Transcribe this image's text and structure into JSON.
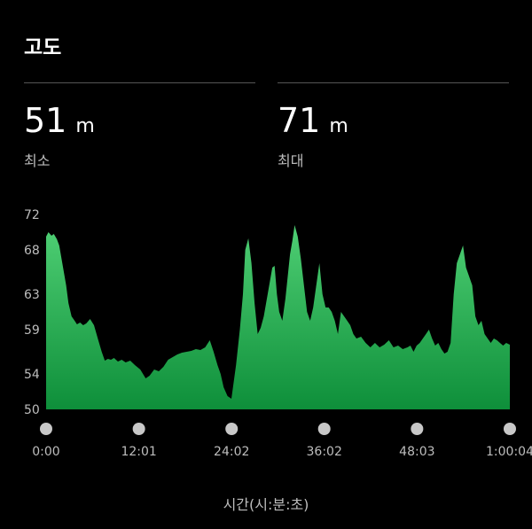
{
  "header": {
    "title": "고도"
  },
  "stats": {
    "min": {
      "value": "51",
      "unit": "m",
      "label": "최소"
    },
    "max": {
      "value": "71",
      "unit": "m",
      "label": "최대"
    }
  },
  "colors": {
    "background": "#000000",
    "area_top": "#4fcf74",
    "area_bottom": "#0e8f3a",
    "tick_text": "#bdbdbd",
    "marker": "#c8c8c8"
  },
  "chart_data": {
    "type": "area",
    "xlabel": "시간(시:분:초)",
    "ylabel": "",
    "y_ticks": [
      "72",
      "68",
      "63",
      "59",
      "54",
      "50"
    ],
    "y_tick_values": [
      72,
      68,
      63,
      59,
      54,
      50
    ],
    "x_ticks": [
      "0:00",
      "12:01",
      "24:02",
      "36:02",
      "48:03",
      "1:00:04"
    ],
    "x_tick_values": [
      0,
      12.02,
      24.03,
      36.03,
      48.05,
      60.07
    ],
    "ylim": [
      50,
      72
    ],
    "xlim": [
      0,
      60.07
    ],
    "x_unit": "minutes",
    "x": [
      0,
      0.3,
      0.7,
      1.0,
      1.4,
      1.7,
      2.0,
      2.3,
      2.6,
      2.9,
      3.3,
      3.7,
      4.0,
      4.4,
      4.8,
      5.2,
      5.7,
      6.2,
      6.7,
      7.2,
      7.6,
      8.0,
      8.4,
      8.8,
      9.3,
      9.8,
      10.3,
      10.9,
      11.5,
      12.2,
      12.9,
      13.4,
      14.0,
      14.6,
      15.2,
      15.8,
      16.4,
      17.0,
      17.6,
      18.2,
      18.8,
      19.4,
      20.0,
      20.6,
      21.2,
      21.7,
      22.2,
      22.6,
      23.0,
      23.5,
      24.0,
      24.6,
      25.1,
      25.5,
      25.8,
      26.2,
      26.6,
      27.0,
      27.4,
      27.8,
      28.2,
      28.6,
      29.0,
      29.3,
      29.6,
      29.9,
      30.2,
      30.6,
      31.0,
      31.3,
      31.6,
      31.9,
      32.2,
      32.6,
      33.0,
      33.4,
      33.8,
      34.2,
      34.6,
      35.0,
      35.4,
      35.8,
      36.2,
      36.6,
      37.0,
      37.4,
      37.8,
      38.2,
      38.6,
      39.0,
      39.4,
      39.8,
      40.2,
      40.8,
      41.4,
      42.0,
      42.6,
      43.2,
      43.8,
      44.4,
      45.0,
      45.6,
      46.2,
      46.8,
      47.2,
      47.6,
      48.0,
      48.4,
      48.8,
      49.2,
      49.6,
      50.0,
      50.4,
      50.8,
      51.2,
      51.6,
      52.0,
      52.4,
      52.8,
      53.2,
      53.6,
      54.0,
      54.4,
      54.8,
      55.2,
      55.6,
      56.0,
      56.4,
      56.8,
      57.2,
      57.6,
      58.0,
      58.4,
      58.8,
      59.2,
      59.6,
      60.07
    ],
    "y": [
      69.5,
      70.0,
      69.6,
      69.8,
      69.2,
      68.5,
      67.0,
      65.5,
      64.0,
      62.0,
      60.5,
      60.0,
      59.6,
      59.8,
      59.5,
      59.7,
      60.2,
      59.5,
      58.0,
      56.5,
      55.5,
      55.7,
      55.6,
      55.8,
      55.4,
      55.6,
      55.3,
      55.5,
      55.0,
      54.5,
      53.5,
      53.8,
      54.5,
      54.3,
      54.8,
      55.6,
      55.9,
      56.2,
      56.4,
      56.5,
      56.6,
      56.8,
      56.7,
      57.0,
      57.8,
      56.5,
      55.0,
      54.0,
      52.5,
      51.5,
      51.2,
      55.0,
      59.0,
      63.0,
      68.0,
      69.3,
      66.5,
      62.0,
      58.5,
      59.2,
      60.5,
      62.5,
      64.5,
      66.0,
      66.2,
      63.0,
      61.0,
      60.0,
      62.5,
      65.0,
      67.5,
      69.0,
      70.8,
      69.5,
      67.0,
      64.0,
      61.0,
      60.0,
      61.5,
      64.0,
      66.5,
      63.0,
      61.5,
      61.5,
      61.0,
      60.0,
      58.5,
      61.0,
      60.5,
      60.0,
      59.5,
      58.5,
      58.0,
      58.2,
      57.5,
      57.0,
      57.5,
      57.0,
      57.3,
      57.8,
      57.0,
      57.2,
      56.8,
      57.0,
      57.2,
      56.5,
      57.2,
      57.5,
      58.0,
      58.5,
      59.0,
      58.0,
      57.2,
      57.5,
      56.8,
      56.3,
      56.5,
      57.5,
      63.0,
      66.5,
      67.5,
      68.5,
      66.0,
      65.0,
      64.0,
      60.5,
      59.5,
      60.0,
      58.5,
      58.0,
      57.5,
      58.0,
      57.8,
      57.5,
      57.2,
      57.5,
      57.3
    ]
  }
}
